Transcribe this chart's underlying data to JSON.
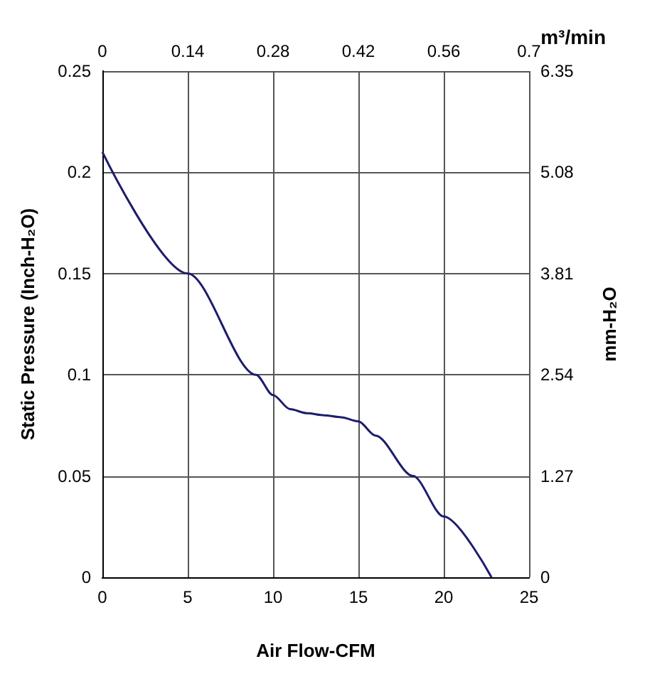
{
  "chart_data": {
    "type": "line",
    "xlabel": "Air Flow-CFM",
    "ylabel": "Static Pressure (Inch-H₂O)",
    "y2label": "mm-H₂O",
    "x2label": "m³/min",
    "x": [
      0,
      5,
      9,
      10,
      11,
      12,
      13,
      14,
      15,
      16,
      18.2,
      20,
      22.8
    ],
    "series": [
      {
        "color": "#1c1c6e",
        "values": [
          0.21,
          0.15,
          0.1,
          0.09,
          0.083,
          0.081,
          0.08,
          0.079,
          0.077,
          0.07,
          0.05,
          0.03,
          0
        ]
      }
    ],
    "xlim": [
      0,
      25
    ],
    "xticks": [
      0,
      5,
      10,
      15,
      20,
      25
    ],
    "ylim": [
      0,
      0.25
    ],
    "yticks": [
      0,
      0.05,
      0.1,
      0.15,
      0.2,
      0.25
    ],
    "x2lim": [
      0,
      0.7
    ],
    "x2ticks": [
      0,
      0.14,
      0.28,
      0.42,
      0.56,
      0.7
    ],
    "y2lim": [
      0,
      6.35
    ],
    "y2ticks": [
      0,
      1.27,
      2.54,
      3.81,
      5.08,
      6.35
    ],
    "grid": true,
    "marker": "none",
    "line_style": "solid"
  }
}
